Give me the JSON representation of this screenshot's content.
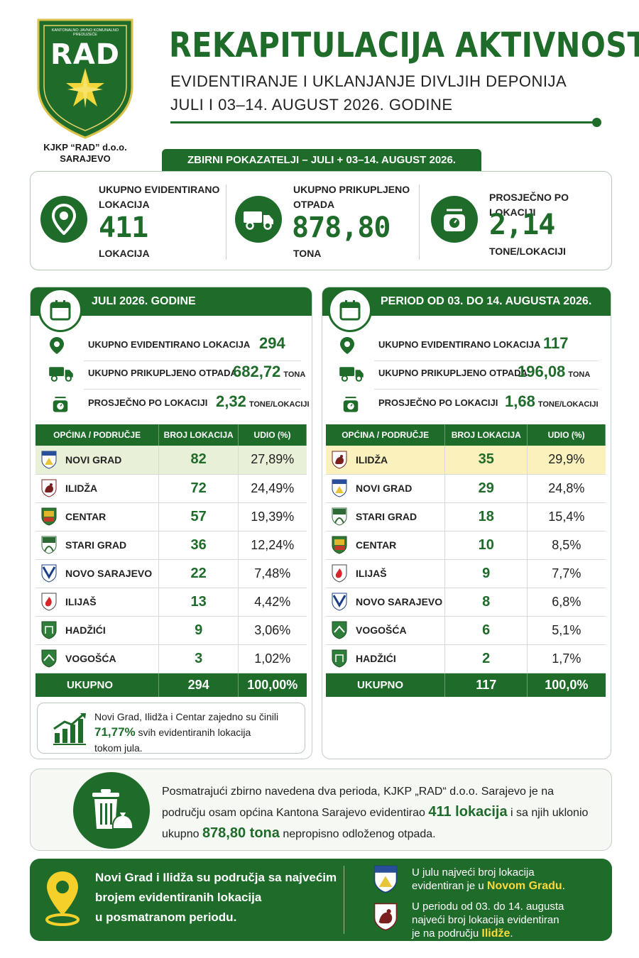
{
  "header": {
    "logo_small_text": "KANTONALNO JAVNO KOMUNALNO PREDUZEĆE",
    "logo_text": "RAD",
    "org_name_line1": "KJKP “RAD” d.o.o.",
    "org_name_line2": "SARAJEVO",
    "title": "REKAPITULACIJA AKTIVNOSTI",
    "subtitle1": "EVIDENTIRANJE I UKLANJANJE DIVLJIH DEPONIJA",
    "subtitle2": "JULI I 03–14. AUGUST 2026. GODINE"
  },
  "summary": {
    "tab": "ZBIRNI POKAZATELJI – JULI + 03–14. AUGUST 2026.",
    "kpi1": {
      "label1": "UKUPNO EVIDENTIRANO",
      "label2": "LOKACIJA",
      "value": "411",
      "unit": "LOKACIJA",
      "icon": "location-pin-icon"
    },
    "kpi2": {
      "label1": "UKUPNO PRIKUPLJENO",
      "label2": "OTPADA",
      "value": "878,80",
      "unit": "TONA",
      "icon": "truck-icon"
    },
    "kpi3": {
      "label1": "PROSJEČNO PO LOKACIJI",
      "value": "2,14",
      "unit": "TONE/LOKACIJI",
      "icon": "scale-icon"
    }
  },
  "july": {
    "heading": "JULI 2026. GODINE",
    "stats": [
      {
        "label": "UKUPNO EVIDENTIRANO LOKACIJA",
        "value": "294",
        "unit": ""
      },
      {
        "label": "UKUPNO PRIKUPLJENO OTPADA",
        "value": "682,72",
        "unit": "TONA"
      },
      {
        "label": "PROSJEČNO PO LOKACIJI",
        "value": "2,32",
        "unit": "TONE/LOKACIJI"
      }
    ],
    "columns": [
      "OPĆINA / PODRUČJE",
      "BROJ LOKACIJA",
      "UDIO (%)"
    ],
    "rows": [
      {
        "name": "NOVI GRAD",
        "count": "82",
        "share": "27,89%"
      },
      {
        "name": "ILIDŽA",
        "count": "72",
        "share": "24,49%"
      },
      {
        "name": "CENTAR",
        "count": "57",
        "share": "19,39%"
      },
      {
        "name": "STARI GRAD",
        "count": "36",
        "share": "12,24%"
      },
      {
        "name": "NOVO SARAJEVO",
        "count": "22",
        "share": "7,48%"
      },
      {
        "name": "ILIJAŠ",
        "count": "13",
        "share": "4,42%"
      },
      {
        "name": "HADŽIĆI",
        "count": "9",
        "share": "3,06%"
      },
      {
        "name": "VOGOŠĆA",
        "count": "3",
        "share": "1,02%"
      }
    ],
    "total": {
      "name": "UKUPNO",
      "count": "294",
      "share": "100,00%"
    },
    "note": {
      "line1": "Novi Grad, Ilidža i Centar zajedno su činili",
      "highlight": "71,77%",
      "line2": " svih evidentiranih lokacija",
      "line3": "tokom jula."
    }
  },
  "august": {
    "heading": "PERIOD OD 03. DO 14. AUGUSTA 2026.",
    "stats": [
      {
        "label": "UKUPNO EVIDENTIRANO LOKACIJA",
        "value": "117",
        "unit": ""
      },
      {
        "label": "UKUPNO PRIKUPLJENO OTPADA",
        "value": "196,08",
        "unit": "TONA"
      },
      {
        "label": "PROSJEČNO PO LOKACIJI",
        "value": "1,68",
        "unit": "TONE/LOKACIJI"
      }
    ],
    "columns": [
      "OPĆINA / PODRUČJE",
      "BROJ LOKACIJA",
      "UDIO (%)"
    ],
    "rows": [
      {
        "name": "ILIDŽA",
        "count": "35",
        "share": "29,9%"
      },
      {
        "name": "NOVI GRAD",
        "count": "29",
        "share": "24,8%"
      },
      {
        "name": "STARI GRAD",
        "count": "18",
        "share": "15,4%"
      },
      {
        "name": "CENTAR",
        "count": "10",
        "share": "8,5%"
      },
      {
        "name": "ILIJAŠ",
        "count": "9",
        "share": "7,7%"
      },
      {
        "name": "NOVO SARAJEVO",
        "count": "8",
        "share": "6,8%"
      },
      {
        "name": "VOGOŠĆA",
        "count": "6",
        "share": "5,1%"
      },
      {
        "name": "HADŽIĆI",
        "count": "2",
        "share": "1,7%"
      }
    ],
    "total": {
      "name": "UKUPNO",
      "count": "117",
      "share": "100,0%"
    }
  },
  "observation": {
    "part1": "Posmatrajući zbirno navedena dva perioda, KJKP „RAD“ d.o.o. Sarajevo je na području osam općina Kantona Sarajevo evidentirao ",
    "locations": "411 lokacija",
    "part2": " i sa njih uklonio ukupno ",
    "tons": "878,80 tona",
    "part3": " nepropisno odloženog otpada."
  },
  "footer": {
    "left_line1": "Novi Grad i Ilidža su područja sa najvećim",
    "left_line2": "brojem evidentiranih lokacija",
    "left_line3": "u posmatranom periodu.",
    "r1_line1": "U julu najveći broj lokacija",
    "r1_line2": "evidentiran je u ",
    "r1_hl": "Novom Gradu",
    "r1_end": ".",
    "r2_line1": "U periodu od 03. do 14. augusta",
    "r2_line2": "najveći broj lokacija evidentiran",
    "r2_line3": "je na području ",
    "r2_hl": "Ilidže",
    "r2_end": "."
  },
  "colors": {
    "primary_green": "#1e6b2a",
    "accent_yellow": "#ffd83a",
    "highlight_light_green": "#e8f0d8",
    "highlight_yellow": "#fbf1bd"
  }
}
